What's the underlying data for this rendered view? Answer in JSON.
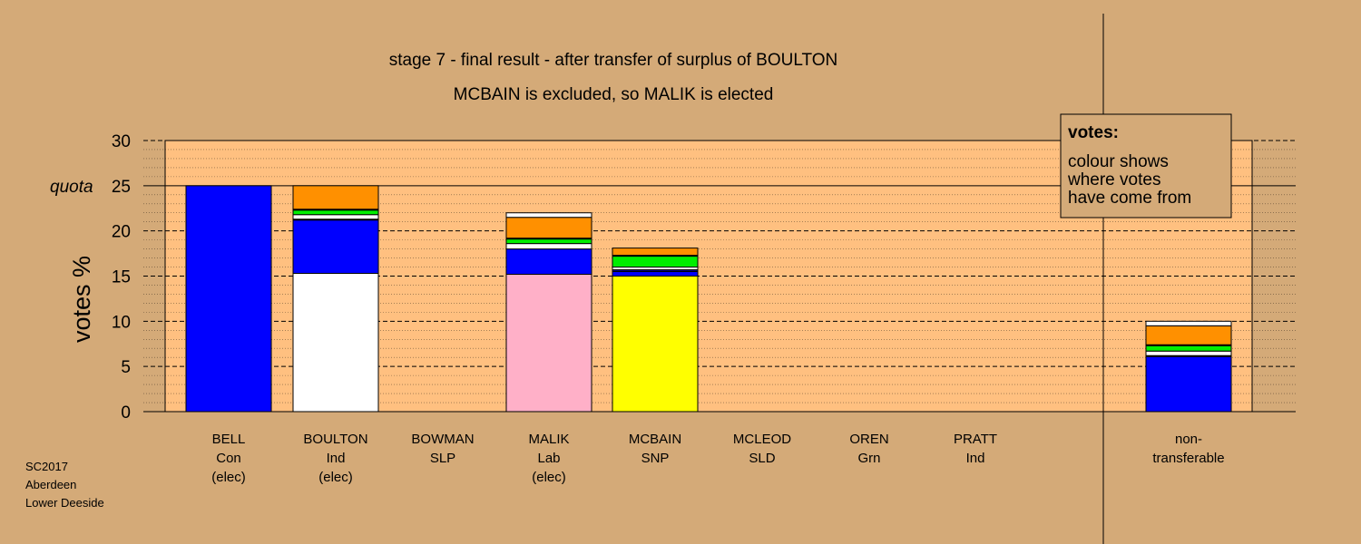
{
  "chart_data": {
    "type": "bar",
    "stacked": true,
    "title": "stage 7 - final result - after transfer of surplus of BOULTON",
    "subtitle": "MCBAIN is excluded, so MALIK is elected",
    "ylabel": "votes %",
    "ylim": [
      0,
      30
    ],
    "yticks": [
      "0",
      "5",
      "10",
      "15",
      "20",
      "25",
      "30"
    ],
    "quota": {
      "label": "quota",
      "value": 25
    },
    "categories": [
      {
        "lines": [
          "BELL",
          "Con",
          "(elec)"
        ]
      },
      {
        "lines": [
          "BOULTON",
          "Ind",
          "(elec)"
        ]
      },
      {
        "lines": [
          "BOWMAN",
          "SLP"
        ]
      },
      {
        "lines": [
          "MALIK",
          "Lab",
          "(elec)"
        ]
      },
      {
        "lines": [
          "MCBAIN",
          "SNP"
        ]
      },
      {
        "lines": [
          "MCLEOD",
          "SLD"
        ]
      },
      {
        "lines": [
          "OREN",
          "Grn"
        ]
      },
      {
        "lines": [
          "PRATT",
          "Ind"
        ]
      },
      {
        "lines": [
          "non-",
          "transferable"
        ]
      }
    ],
    "segment_colors": {
      "Con": "#0000ff",
      "Ind": "#ffffff",
      "SLP": "#800000",
      "Lab": "#ffb0c8",
      "SNP": "#ffff00",
      "SLD": "#ff9000",
      "Grn": "#00ee00",
      "Ind2": "#ffffff",
      "NavyCon": "#000080"
    },
    "stacks": [
      [
        {
          "from": "Con",
          "value": 25.0
        }
      ],
      [
        {
          "from": "Ind",
          "value": 15.3
        },
        {
          "from": "Con",
          "value": 5.9
        },
        {
          "from": "NavyCon",
          "value": 0.1
        },
        {
          "from": "Ind2",
          "value": 0.5
        },
        {
          "from": "Grn",
          "value": 0.5
        },
        {
          "from": "SLP",
          "value": 0.1
        },
        {
          "from": "SLD",
          "value": 2.6
        }
      ],
      [],
      [
        {
          "from": "Lab",
          "value": 15.2
        },
        {
          "from": "Con",
          "value": 2.8
        },
        {
          "from": "Ind2",
          "value": 0.6
        },
        {
          "from": "Grn",
          "value": 0.5
        },
        {
          "from": "SLP",
          "value": 0.1
        },
        {
          "from": "SLD",
          "value": 2.3
        },
        {
          "from": "Ind",
          "value": 0.5
        }
      ],
      [
        {
          "from": "SNP",
          "value": 15.0
        },
        {
          "from": "Con",
          "value": 0.5
        },
        {
          "from": "NavyCon",
          "value": 0.2
        },
        {
          "from": "Ind2",
          "value": 0.3
        },
        {
          "from": "Grn",
          "value": 1.2
        },
        {
          "from": "SLP",
          "value": 0.1
        },
        {
          "from": "SLD",
          "value": 0.8
        }
      ],
      [],
      [],
      [],
      [
        {
          "from": "Con",
          "value": 6.1
        },
        {
          "from": "NavyCon",
          "value": 0.1
        },
        {
          "from": "Ind2",
          "value": 0.5
        },
        {
          "from": "Grn",
          "value": 0.6
        },
        {
          "from": "SLP",
          "value": 0.1
        },
        {
          "from": "SLD",
          "value": 2.1
        },
        {
          "from": "Ind",
          "value": 0.5
        }
      ]
    ],
    "legend": {
      "title": "votes:",
      "lines": [
        "colour shows",
        "where votes",
        "have come from"
      ],
      "placement": "top-right"
    },
    "footnote": [
      "SC2017",
      "Aberdeen",
      "Lower Deeside"
    ],
    "background_color": "#d4aa78",
    "plot_color": "#ffc080"
  }
}
